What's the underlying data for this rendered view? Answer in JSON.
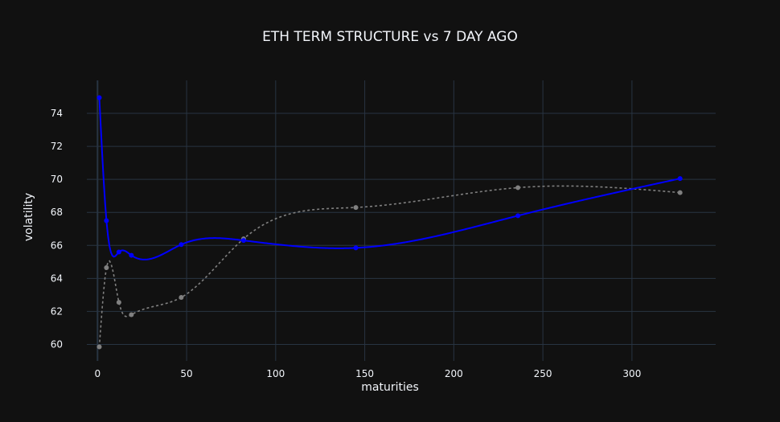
{
  "chart_data": {
    "type": "line",
    "title": "ETH TERM STRUCTURE vs 7 DAY AGO",
    "xlabel": "maturities",
    "ylabel": "volatility",
    "xlim": [
      -6,
      347
    ],
    "ylim": [
      59.0,
      76.0
    ],
    "x_ticks": [
      0,
      50,
      100,
      150,
      200,
      250,
      300
    ],
    "y_ticks": [
      60,
      62,
      64,
      66,
      68,
      70,
      72,
      74
    ],
    "grid": true,
    "legend": "none",
    "series": [
      {
        "color": "#0000ff",
        "line_style": "solid",
        "x": [
          1,
          5,
          12,
          19,
          47,
          82,
          145,
          236,
          327
        ],
        "y": [
          74.95,
          67.5,
          65.6,
          65.4,
          66.05,
          66.3,
          65.85,
          67.8,
          70.05
        ]
      },
      {
        "color": "#808080",
        "line_style": "dotted",
        "x": [
          1,
          5,
          12,
          19,
          47,
          82,
          145,
          236,
          327
        ],
        "y": [
          59.85,
          64.65,
          62.55,
          61.8,
          62.85,
          66.4,
          68.3,
          69.5,
          69.2
        ]
      }
    ]
  },
  "colors": {
    "background": "#111111",
    "gridline": "#283442",
    "text": "#f2f5fa"
  }
}
